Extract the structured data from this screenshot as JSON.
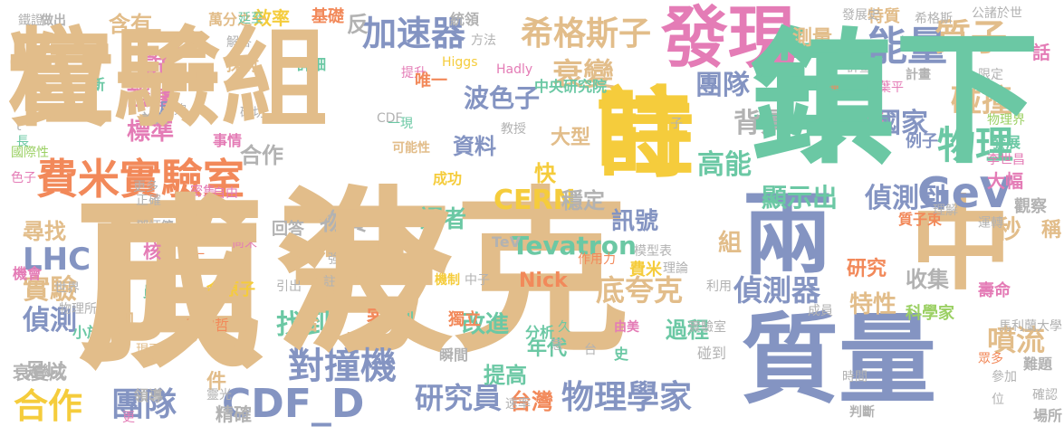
{
  "palette": {
    "tan": "#e2bd8a",
    "blue": "#8494c2",
    "teal": "#6bc8a4",
    "gold": "#f5cc3c",
    "pink": "#e47cb6",
    "orange": "#f2895a",
    "gray": "#b2b2b2",
    "green": "#9bd063"
  },
  "words": [
    "頂",
    "夸克",
    "年",
    "粒子",
    "時",
    "發現",
    "兩",
    "中",
    "質量",
    "費米實驗室",
    "希格斯子",
    "加速器",
    "能量",
    "質子",
    "衰變",
    "團隊",
    "碰撞",
    "物理",
    "GeV",
    "背景",
    "國家",
    "高能",
    "顯示出",
    "CERN",
    "偵測到",
    "對撞機",
    "物理學家",
    "CDF_D",
    "研究員",
    "偵測器",
    "Tevatron",
    "底夸克",
    "找到",
    "LHC",
    "實驗",
    "偵測",
    "合作",
    "團隊",
    "證據",
    "標準",
    "大型",
    "波色子",
    "資料",
    "快",
    "訊號",
    "穩定",
    "譯者",
    "物質",
    "尋找",
    "改進",
    "提高",
    "台灣",
    "噴流",
    "特性",
    "研究",
    "收集",
    "過程",
    "年代",
    "件",
    "倍",
    "審查",
    "足以",
    "衰變成",
    "說",
    "含有",
    "反",
    "效率",
    "基礎",
    "測量",
    "特質",
    "希格斯",
    "公諸於世",
    "發展史",
    "話",
    "物理界",
    "發展",
    "李世昌",
    "大幅",
    "觀察",
    "稱",
    "秒",
    "壽命",
    "馬利蘭大學",
    "科學家",
    "合作",
    "組",
    "子",
    "精確",
    "更",
    "單一",
    "王明哲",
    "金原子",
    "差別",
    "獨立",
    "分析",
    "機制",
    "中子",
    "Nick",
    "W",
    "CDF",
    "Higgs",
    "Hadly",
    "中央研究院",
    "提升",
    "探討",
    "詳細",
    "解答",
    "萬分之一",
    "延至",
    "統領",
    "鐵證",
    "做出",
    "唯一",
    "月",
    "日",
    "新",
    "t",
    "長",
    "國際性",
    "色子",
    "事情",
    "尚未",
    "鄧炳坤",
    "第一",
    "回答",
    "強",
    "核",
    "空",
    "員",
    "世界",
    "物理所",
    "機會",
    "加",
    "小於",
    "現已",
    "領導",
    "靈光",
    "瞬間",
    "意",
    "史",
    "由美",
    "久",
    "台",
    "TeV",
    "模型表",
    "費米",
    "理論",
    "實驗室",
    "碰到",
    "成員",
    "利用",
    "眾多",
    "時間",
    "參加",
    "判斷",
    "確認",
    "場所",
    "難題",
    "位",
    "計畫",
    "計畫",
    "限定",
    "找",
    "例子",
    "質子束",
    "理解",
    "運轉",
    "自由",
    "作用力",
    "一現",
    "可能性",
    "成功",
    "教授",
    "論文",
    "夠",
    "確切",
    "更多",
    "撞",
    "葉平",
    "註",
    "引出",
    "密集",
    "方法",
    "速率",
    "短",
    "正確",
    "成",
    "波",
    "鎮下",
    "實驗組",
    "註"
  ]
}
